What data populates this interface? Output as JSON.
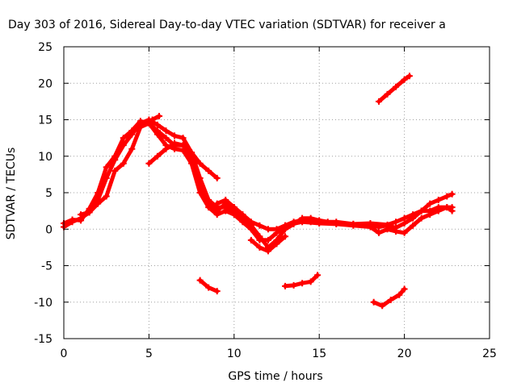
{
  "chart_data": {
    "type": "scatter",
    "title": "Day 303 of 2016, Sidereal Day-to-day VTEC variation (SDTVAR) for receiver a",
    "xlabel": "GPS time / hours",
    "ylabel": "SDTVAR / TECUs",
    "xlim": [
      0,
      25
    ],
    "ylim": [
      -15,
      25
    ],
    "xticks": [
      0,
      5,
      10,
      15,
      20,
      25
    ],
    "yticks": [
      -15,
      -10,
      -5,
      0,
      5,
      10,
      15,
      20,
      25
    ],
    "grid": true,
    "colors": {
      "series": "#ff0000",
      "grid": "#a0a0a0"
    },
    "series": [
      {
        "segments": [
          [
            [
              0,
              0.3
            ],
            [
              0.5,
              1.0
            ],
            [
              1.0,
              1.5
            ],
            [
              1.5,
              2.3
            ],
            [
              2.0,
              4.0
            ],
            [
              2.5,
              7.0
            ],
            [
              3.0,
              9.5
            ],
            [
              3.5,
              11.5
            ],
            [
              4.0,
              13.0
            ],
            [
              4.5,
              14.5
            ],
            [
              5.0,
              15.0
            ],
            [
              5.5,
              14.3
            ],
            [
              6.0,
              13.5
            ],
            [
              6.5,
              12.8
            ],
            [
              7.0,
              12.5
            ],
            [
              7.5,
              10.5
            ],
            [
              8.0,
              7.0
            ],
            [
              8.5,
              4.0
            ],
            [
              9.0,
              3.0
            ],
            [
              9.5,
              3.0
            ],
            [
              10.0,
              2.5
            ],
            [
              10.5,
              1.5
            ],
            [
              11.0,
              0.5
            ],
            [
              11.5,
              -1.0
            ],
            [
              12.0,
              -2.5
            ],
            [
              12.5,
              -1.5
            ],
            [
              13.0,
              0.0
            ],
            [
              13.5,
              0.7
            ],
            [
              14.0,
              1.5
            ],
            [
              14.5,
              1.5
            ],
            [
              15.0,
              1.2
            ],
            [
              15.5,
              1.0
            ],
            [
              16.0,
              1.0
            ],
            [
              17.0,
              0.7
            ],
            [
              18.0,
              0.5
            ],
            [
              18.5,
              0.3
            ],
            [
              19.0,
              0.5
            ],
            [
              19.5,
              0.2
            ],
            [
              20.0,
              0.8
            ],
            [
              20.5,
              1.5
            ],
            [
              21.0,
              2.5
            ],
            [
              21.5,
              3.5
            ],
            [
              22.0,
              4.0
            ],
            [
              22.5,
              4.5
            ],
            [
              22.8,
              4.8
            ]
          ],
          [
            [
              0,
              0.8
            ],
            [
              0.5,
              1.3
            ],
            [
              1.0,
              1.2
            ],
            [
              1.5,
              2.8
            ],
            [
              2.0,
              5.0
            ],
            [
              2.5,
              8.5
            ],
            [
              3.0,
              10.0
            ],
            [
              3.5,
              12.5
            ],
            [
              4.0,
              13.5
            ],
            [
              4.5,
              14.8
            ],
            [
              5.0,
              14.5
            ],
            [
              5.5,
              13.5
            ],
            [
              6.0,
              12.5
            ],
            [
              6.5,
              11.5
            ],
            [
              7.0,
              11.5
            ],
            [
              7.5,
              9.5
            ],
            [
              8.0,
              6.0
            ],
            [
              8.5,
              3.5
            ],
            [
              9.0,
              2.5
            ],
            [
              9.5,
              3.5
            ],
            [
              10.0,
              3.0
            ],
            [
              10.5,
              2.0
            ],
            [
              11.0,
              1.0
            ],
            [
              11.5,
              0.5
            ],
            [
              12.0,
              0.0
            ],
            [
              12.5,
              0.0
            ],
            [
              13.0,
              0.5
            ],
            [
              13.5,
              1.0
            ],
            [
              14.0,
              1.2
            ],
            [
              14.5,
              1.0
            ],
            [
              15.0,
              1.0
            ],
            [
              16.0,
              0.8
            ],
            [
              17.0,
              0.7
            ],
            [
              18.0,
              0.8
            ],
            [
              19.0,
              0.6
            ],
            [
              19.5,
              1.0
            ],
            [
              20.0,
              1.5
            ],
            [
              20.5,
              2.0
            ],
            [
              21.0,
              2.5
            ],
            [
              21.5,
              2.5
            ],
            [
              22.0,
              3.0
            ],
            [
              22.5,
              3.0
            ],
            [
              22.8,
              2.5
            ]
          ],
          [
            [
              1.0,
              2.0
            ],
            [
              1.5,
              2.3
            ],
            [
              2.0,
              3.5
            ],
            [
              2.5,
              4.5
            ],
            [
              3.0,
              8.0
            ],
            [
              3.5,
              9.0
            ],
            [
              4.0,
              11.0
            ],
            [
              4.5,
              14.0
            ],
            [
              5.0,
              14.5
            ],
            [
              5.5,
              13.0
            ],
            [
              6.0,
              11.5
            ],
            [
              6.5,
              11.0
            ],
            [
              7.0,
              10.8
            ],
            [
              7.5,
              9.0
            ],
            [
              8.0,
              5.0
            ],
            [
              8.5,
              3.0
            ],
            [
              9.0,
              2.0
            ],
            [
              9.5,
              2.5
            ],
            [
              10.0,
              2.0
            ],
            [
              10.5,
              1.0
            ],
            [
              11.0,
              0.0
            ],
            [
              11.5,
              -1.5
            ],
            [
              12.0,
              -1.5
            ],
            [
              12.5,
              -0.5
            ],
            [
              13.0,
              0.5
            ],
            [
              14.0,
              1.0
            ],
            [
              15.0,
              0.8
            ],
            [
              16.0,
              0.7
            ],
            [
              17.0,
              0.5
            ],
            [
              18.0,
              0.3
            ],
            [
              18.5,
              -0.5
            ],
            [
              19.0,
              0.0
            ],
            [
              19.5,
              -0.3
            ],
            [
              20.0,
              -0.5
            ],
            [
              20.5,
              0.5
            ],
            [
              21.0,
              1.5
            ],
            [
              21.5,
              2.0
            ],
            [
              22.0,
              2.5
            ],
            [
              22.5,
              3.0
            ],
            [
              22.8,
              3.0
            ]
          ],
          [
            [
              5.0,
              9.0
            ],
            [
              5.5,
              10.0
            ],
            [
              6.0,
              11.0
            ],
            [
              6.5,
              11.8
            ],
            [
              7.0,
              11.5
            ],
            [
              7.5,
              10.5
            ],
            [
              8.0,
              9.0
            ],
            [
              8.5,
              8.0
            ],
            [
              9.0,
              7.0
            ]
          ],
          [
            [
              4.8,
              14.5
            ],
            [
              5.2,
              15.0
            ],
            [
              5.6,
              15.5
            ]
          ],
          [
            [
              9.0,
              3.5
            ],
            [
              9.5,
              4.0
            ],
            [
              10.0,
              3.0
            ],
            [
              10.5,
              2.0
            ]
          ],
          [
            [
              11.0,
              -1.5
            ],
            [
              11.5,
              -2.5
            ],
            [
              12.0,
              -3.0
            ],
            [
              12.5,
              -2.0
            ],
            [
              13.0,
              -1.0
            ]
          ],
          [
            [
              18.5,
              17.5
            ],
            [
              19.0,
              18.5
            ],
            [
              19.5,
              19.5
            ],
            [
              20.0,
              20.5
            ],
            [
              20.3,
              21.0
            ]
          ],
          [
            [
              8.0,
              -7.0
            ],
            [
              8.5,
              -8.0
            ],
            [
              9.0,
              -8.5
            ]
          ],
          [
            [
              13.0,
              -7.8
            ],
            [
              13.5,
              -7.7
            ],
            [
              14.0,
              -7.4
            ],
            [
              14.5,
              -7.2
            ],
            [
              14.9,
              -6.3
            ]
          ],
          [
            [
              18.2,
              -10.0
            ],
            [
              18.7,
              -10.5
            ],
            [
              19.2,
              -9.7
            ],
            [
              19.7,
              -9.0
            ],
            [
              20.0,
              -8.2
            ]
          ]
        ]
      }
    ]
  }
}
